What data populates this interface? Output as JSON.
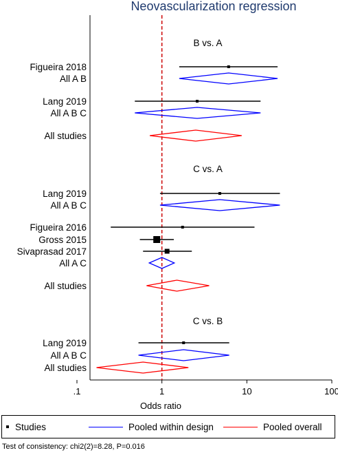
{
  "chart_data": {
    "type": "forest",
    "title": "Neovascularization regression",
    "xlabel": "Odds ratio",
    "xscale": "log",
    "xlim": [
      0.1,
      100
    ],
    "xticks": [
      {
        "value": 0.1,
        "label": ".1"
      },
      {
        "value": 1,
        "label": "1"
      },
      {
        "value": 10,
        "label": "10"
      },
      {
        "value": 100,
        "label": "100"
      }
    ],
    "reference_line": 1,
    "groups": [
      {
        "heading": "B vs. A",
        "rows": [
          {
            "label": "Figueira 2018",
            "kind": "study",
            "est": 6.1,
            "lo": 1.6,
            "hi": 23,
            "weight": 1
          },
          {
            "label": "All A B",
            "kind": "pooled-design",
            "est": 6.1,
            "lo": 1.6,
            "hi": 23
          },
          {
            "label": "Lang 2019",
            "kind": "study",
            "est": 2.6,
            "lo": 0.48,
            "hi": 14.5,
            "weight": 1
          },
          {
            "label": "All A B C",
            "kind": "pooled-design",
            "est": 2.6,
            "lo": 0.48,
            "hi": 14.5
          },
          {
            "label": "All studies",
            "kind": "pooled-overall",
            "est": 2.5,
            "lo": 0.72,
            "hi": 8.7
          }
        ]
      },
      {
        "heading": "C vs. A",
        "rows": [
          {
            "label": "Lang 2019",
            "kind": "study",
            "est": 4.8,
            "lo": 0.95,
            "hi": 24.5,
            "weight": 1
          },
          {
            "label": "All A B C",
            "kind": "pooled-design",
            "est": 4.8,
            "lo": 0.95,
            "hi": 24.5
          },
          {
            "label": "Figueira 2016",
            "kind": "study",
            "est": 1.75,
            "lo": 0.25,
            "hi": 12.3,
            "weight": 1
          },
          {
            "label": "Gross 2015",
            "kind": "study",
            "est": 0.87,
            "lo": 0.55,
            "hi": 1.38,
            "weight": 3
          },
          {
            "label": "Sivaprasad 2017",
            "kind": "study",
            "est": 1.15,
            "lo": 0.6,
            "hi": 2.25,
            "weight": 2
          },
          {
            "label": "All A C",
            "kind": "pooled-design",
            "est": 1.0,
            "lo": 0.71,
            "hi": 1.4
          },
          {
            "label": "All studies",
            "kind": "pooled-overall",
            "est": 1.5,
            "lo": 0.66,
            "hi": 3.6
          }
        ]
      },
      {
        "heading": "C vs. B",
        "rows": [
          {
            "label": "Lang 2019",
            "kind": "study",
            "est": 1.8,
            "lo": 0.53,
            "hi": 6.2,
            "weight": 1
          },
          {
            "label": "All A B C",
            "kind": "pooled-design",
            "est": 1.8,
            "lo": 0.53,
            "hi": 6.2
          },
          {
            "label": "All studies",
            "kind": "pooled-overall",
            "est": 0.6,
            "lo": 0.17,
            "hi": 2.05
          }
        ]
      }
    ],
    "legend": {
      "position": "bottom",
      "items": [
        {
          "label": "Studies",
          "kind": "marker"
        },
        {
          "label": "Pooled within design",
          "kind": "line",
          "color": "#0000ff"
        },
        {
          "label": "Pooled overall",
          "kind": "line",
          "color": "#ff0000"
        }
      ]
    },
    "footnote": "Test of consistency: chi2(2)=8.28, P=0.016",
    "colors": {
      "pooled_design": "#0000ff",
      "pooled_overall": "#ff0000",
      "reference": "#cc0000",
      "study": "#000000"
    }
  }
}
